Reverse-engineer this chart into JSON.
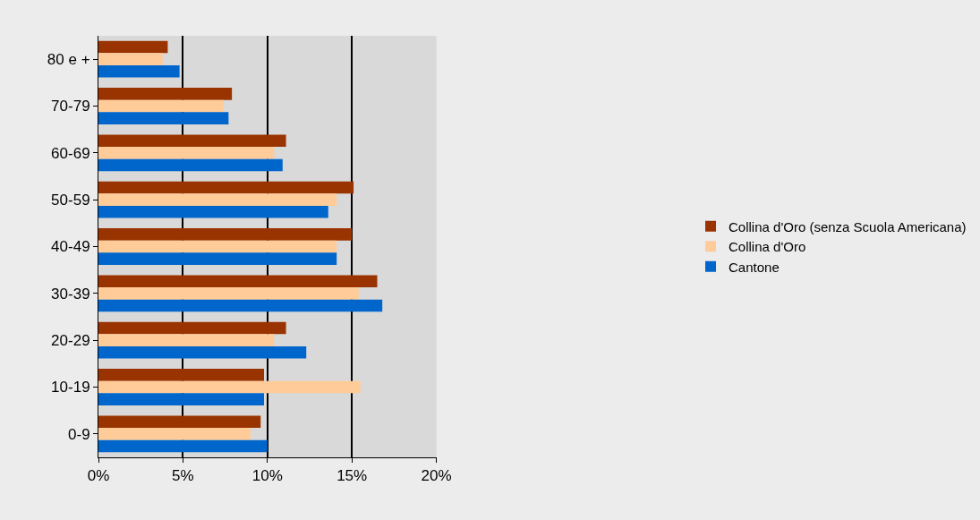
{
  "chart_data": {
    "type": "bar",
    "orientation": "horizontal",
    "categories": [
      "80 e +",
      "70-79",
      "60-69",
      "50-59",
      "40-49",
      "30-39",
      "20-29",
      "10-19",
      "0-9"
    ],
    "series": [
      {
        "name": "Collina d'Oro (senza Scuola Americana)",
        "color": "#993300",
        "values": [
          4.1,
          7.9,
          11.1,
          15.1,
          15.0,
          16.5,
          11.1,
          9.8,
          9.6
        ]
      },
      {
        "name": "Collina d'Oro",
        "color": "#ffcc99",
        "values": [
          3.8,
          7.4,
          10.4,
          14.1,
          14.1,
          15.4,
          10.4,
          15.5,
          9.0
        ]
      },
      {
        "name": "Cantone",
        "color": "#0066cc",
        "values": [
          4.8,
          7.7,
          10.9,
          13.6,
          14.1,
          16.8,
          12.3,
          9.8,
          10.0
        ]
      }
    ],
    "xlim": [
      0,
      20
    ],
    "xticks": [
      {
        "value": 0,
        "label": "0%"
      },
      {
        "value": 5,
        "label": "5%"
      },
      {
        "value": 10,
        "label": "10%"
      },
      {
        "value": 15,
        "label": "15%"
      },
      {
        "value": 20,
        "label": "20%"
      }
    ],
    "grid": "x",
    "legend": "right"
  }
}
